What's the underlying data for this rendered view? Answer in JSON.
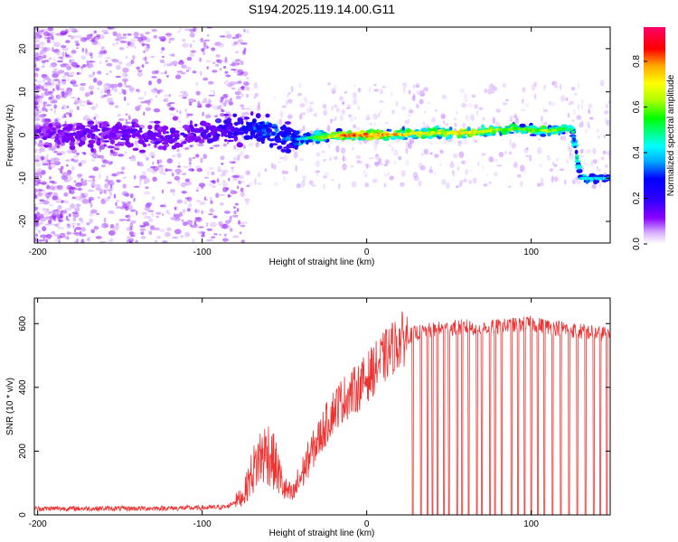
{
  "title": "S194.2025.119.14.00.G11",
  "chart_data": [
    {
      "type": "heatmap",
      "xlabel": "Height of straight line (km)",
      "ylabel": "Frequency (Hz)",
      "xlim": [
        -202,
        148
      ],
      "ylim": [
        -25,
        25
      ],
      "xticks": [
        -200,
        -100,
        0,
        100
      ],
      "xtick_labels": [
        "-200",
        "-100",
        "0",
        "100"
      ],
      "yticks": [
        20,
        10,
        0,
        -10,
        -20
      ],
      "ytick_labels": [
        "20",
        "10",
        "0",
        "-10",
        "-20"
      ],
      "colorbar": {
        "label": "Normalized spectral amplitude",
        "range": [
          0,
          0.95
        ],
        "ticks": [
          0.0,
          0.2,
          0.4,
          0.6,
          0.8
        ],
        "tick_labels": [
          "0.0",
          "0.2",
          "0.4",
          "0.6",
          "0.8"
        ],
        "colors": [
          "#ffffff",
          "#d9b3ff",
          "#8800ff",
          "#3300ff",
          "#0000ff",
          "#00aaff",
          "#00ffff",
          "#00ff00",
          "#aaff00",
          "#ffff00",
          "#ffaa00",
          "#ff0000",
          "#ff0066"
        ]
      },
      "ridge": [
        {
          "x": -200,
          "freq": 0,
          "amp": 0.12
        },
        {
          "x": -150,
          "freq": 0,
          "amp": 0.13
        },
        {
          "x": -100,
          "freq": 0,
          "amp": 0.15
        },
        {
          "x": -80,
          "freq": 2,
          "amp": 0.2
        },
        {
          "x": -60,
          "freq": 1,
          "amp": 0.35
        },
        {
          "x": -45,
          "freq": -1,
          "amp": 0.3
        },
        {
          "x": -30,
          "freq": -0.5,
          "amp": 0.6
        },
        {
          "x": -10,
          "freq": 0,
          "amp": 0.85
        },
        {
          "x": 10,
          "freq": 0,
          "amp": 0.8
        },
        {
          "x": 40,
          "freq": 0.5,
          "amp": 0.7
        },
        {
          "x": 60,
          "freq": 0.5,
          "amp": 0.75
        },
        {
          "x": 90,
          "freq": 1.5,
          "amp": 0.6
        },
        {
          "x": 110,
          "freq": 1,
          "amp": 0.65
        },
        {
          "x": 125,
          "freq": 1.5,
          "amp": 0.5
        },
        {
          "x": 130,
          "freq": -10,
          "amp": 0.45
        },
        {
          "x": 148,
          "freq": -10,
          "amp": 0.4
        }
      ]
    },
    {
      "type": "line",
      "xlabel": "Height of straight line (km)",
      "ylabel": "SNR (10 * v/v)",
      "xlim": [
        -202,
        148
      ],
      "ylim": [
        0,
        680
      ],
      "xticks": [
        -200,
        -100,
        0,
        100
      ],
      "xtick_labels": [
        "-200",
        "-100",
        "0",
        "100"
      ],
      "yticks": [
        0,
        200,
        400,
        600
      ],
      "ytick_labels": [
        "0",
        "200",
        "400",
        "600"
      ],
      "color": "#ee3333",
      "series": [
        {
          "x": [
            -202,
            -150,
            -100,
            -85,
            -75,
            -70,
            -65,
            -60,
            -55,
            -50,
            -45,
            -40,
            -35,
            -30,
            -25,
            -20,
            -15,
            -10,
            -5,
            0,
            5,
            10,
            15,
            20,
            25,
            30,
            35,
            40,
            50,
            60,
            70,
            80,
            90,
            100,
            110,
            120,
            130,
            140,
            148
          ],
          "y": [
            20,
            20,
            22,
            25,
            60,
            130,
            180,
            200,
            150,
            80,
            60,
            120,
            180,
            230,
            280,
            330,
            360,
            380,
            400,
            430,
            460,
            490,
            520,
            545,
            560,
            570,
            575,
            580,
            585,
            590,
            585,
            590,
            595,
            600,
            590,
            585,
            575,
            570,
            570
          ]
        }
      ],
      "dropouts_x": [
        28,
        33,
        37,
        40,
        43,
        47,
        50,
        55,
        58,
        62,
        67,
        70,
        75,
        78,
        82,
        88,
        92,
        96,
        100,
        104,
        108,
        113,
        118,
        123,
        128,
        133,
        138,
        142,
        146
      ]
    }
  ]
}
